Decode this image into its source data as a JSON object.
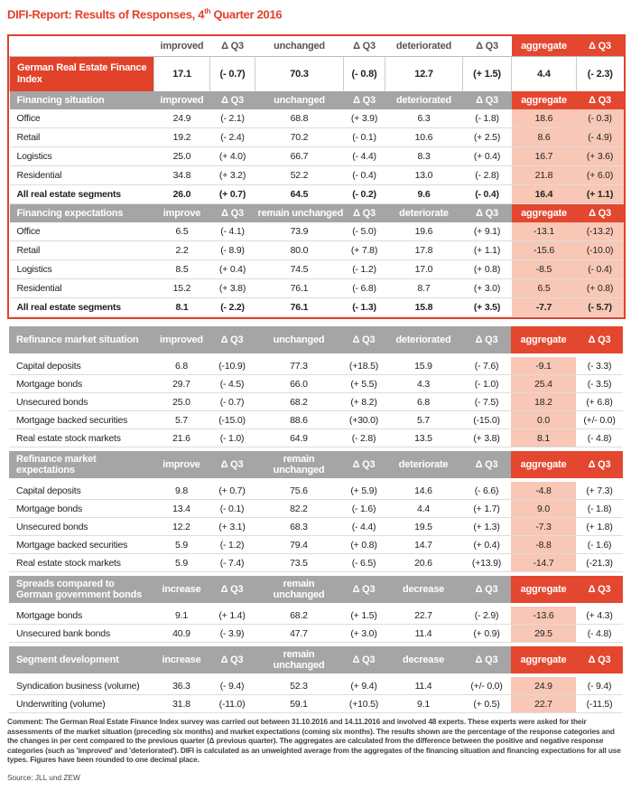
{
  "title": {
    "main": "DIFI-Report: Results of Responses, 4",
    "sup": "th",
    "rest": "Quarter 2016"
  },
  "tables": [
    {
      "headers": [
        "improved",
        "Δ Q3",
        "unchanged",
        "Δ Q3",
        "deteriorated",
        "Δ Q3",
        "aggregate",
        "Δ Q3"
      ],
      "index": {
        "label": "German Real Estate Finance Index",
        "cells": [
          "17.1",
          "(- 0.7)",
          "70.3",
          "(- 0.8)",
          "12.7",
          "(+ 1.5)",
          "4.4",
          "(- 2.3)"
        ]
      },
      "sections": [
        {
          "title": "Financing situation",
          "headers": [
            "improved",
            "Δ Q3",
            "unchanged",
            "Δ Q3",
            "deteriorated",
            "Δ Q3",
            "aggregate",
            "Δ Q3"
          ],
          "rows": [
            {
              "label": "Office",
              "cells": [
                "24.9",
                "(- 2.1)",
                "68.8",
                "(+ 3.9)",
                "6.3",
                "(- 1.8)",
                "18.6",
                "(- 0.3)"
              ]
            },
            {
              "label": "Retail",
              "cells": [
                "19.2",
                "(- 2.4)",
                "70.2",
                "(- 0.1)",
                "10.6",
                "(+ 2.5)",
                "8.6",
                "(- 4.9)"
              ]
            },
            {
              "label": "Logistics",
              "cells": [
                "25.0",
                "(+ 4.0)",
                "66.7",
                "(- 4.4)",
                "8.3",
                "(+ 0.4)",
                "16.7",
                "(+ 3.6)"
              ]
            },
            {
              "label": "Residential",
              "cells": [
                "34.8",
                "(+ 3.2)",
                "52.2",
                "(- 0.4)",
                "13.0",
                "(- 2.8)",
                "21.8",
                "(+ 6.0)"
              ]
            }
          ],
          "total": {
            "label": "All real estate segments",
            "cells": [
              "26.0",
              "(+ 0.7)",
              "64.5",
              "(- 0.2)",
              "9.6",
              "(- 0.4)",
              "16.4",
              "(+ 1.1)"
            ]
          }
        },
        {
          "title": "Financing expectations",
          "headers": [
            "improve",
            "Δ Q3",
            "remain unchanged",
            "Δ Q3",
            "deteriorate",
            "Δ Q3",
            "aggregate",
            "Δ Q3"
          ],
          "rows": [
            {
              "label": "Office",
              "cells": [
                "6.5",
                "(- 4.1)",
                "73.9",
                "(- 5.0)",
                "19.6",
                "(+ 9.1)",
                "-13.1",
                "(-13.2)"
              ]
            },
            {
              "label": "Retail",
              "cells": [
                "2.2",
                "(- 8.9)",
                "80.0",
                "(+ 7.8)",
                "17.8",
                "(+ 1.1)",
                "-15.6",
                "(-10.0)"
              ]
            },
            {
              "label": "Logistics",
              "cells": [
                "8.5",
                "(+ 0.4)",
                "74.5",
                "(- 1.2)",
                "17.0",
                "(+ 0.8)",
                "-8.5",
                "(- 0.4)"
              ]
            },
            {
              "label": "Residential",
              "cells": [
                "15.2",
                "(+ 3.8)",
                "76.1",
                "(- 6.8)",
                "8.7",
                "(+ 3.0)",
                "6.5",
                "(+ 0.8)"
              ]
            }
          ],
          "total": {
            "label": "All real estate segments",
            "cells": [
              "8.1",
              "(- 2.2)",
              "76.1",
              "(- 1.3)",
              "15.8",
              "(+ 3.5)",
              "-7.7",
              "(- 5.7)"
            ]
          }
        }
      ]
    },
    {
      "sections": [
        {
          "title": "Refinance market situation",
          "headers": [
            "improved",
            "Δ Q3",
            "unchanged",
            "Δ Q3",
            "deteriorated",
            "Δ Q3",
            "aggregate",
            "Δ Q3"
          ],
          "rows": [
            {
              "label": "Capital deposits",
              "cells": [
                "6.8",
                "(-10.9)",
                "77.3",
                "(+18.5)",
                "15.9",
                "(- 7.6)",
                "-9.1",
                "(- 3.3)"
              ]
            },
            {
              "label": "Mortgage bonds",
              "cells": [
                "29.7",
                "(- 4.5)",
                "66.0",
                "(+ 5.5)",
                "4.3",
                "(- 1.0)",
                "25.4",
                "(- 3.5)"
              ]
            },
            {
              "label": "Unsecured bonds",
              "cells": [
                "25.0",
                "(- 0.7)",
                "68.2",
                "(+ 8.2)",
                "6.8",
                "(- 7.5)",
                "18.2",
                "(+ 6.8)"
              ]
            },
            {
              "label": "Mortgage backed securities",
              "cells": [
                "5.7",
                "(-15.0)",
                "88.6",
                "(+30.0)",
                "5.7",
                "(-15.0)",
                "0.0",
                "(+/- 0.0)"
              ]
            },
            {
              "label": "Real estate stock markets",
              "cells": [
                "21.6",
                "(- 1.0)",
                "64.9",
                "(- 2.8)",
                "13.5",
                "(+ 3.8)",
                "8.1",
                "(- 4.8)"
              ]
            }
          ]
        },
        {
          "title": "Refinance market expectations",
          "headers": [
            "improve",
            "Δ Q3",
            "remain unchanged",
            "Δ Q3",
            "deteriorate",
            "Δ Q3",
            "aggregate",
            "Δ Q3"
          ],
          "rows": [
            {
              "label": "Capital deposits",
              "cells": [
                "9.8",
                "(+ 0.7)",
                "75.6",
                "(+ 5.9)",
                "14.6",
                "(- 6.6)",
                "-4.8",
                "(+ 7.3)"
              ]
            },
            {
              "label": "Mortgage bonds",
              "cells": [
                "13.4",
                "(- 0.1)",
                "82.2",
                "(- 1.6)",
                "4.4",
                "(+ 1.7)",
                "9.0",
                "(- 1.8)"
              ]
            },
            {
              "label": "Unsecured bonds",
              "cells": [
                "12.2",
                "(+ 3.1)",
                "68.3",
                "(- 4.4)",
                "19.5",
                "(+ 1.3)",
                "-7.3",
                "(+ 1.8)"
              ]
            },
            {
              "label": "Mortgage backed securities",
              "cells": [
                "5.9",
                "(- 1.2)",
                "79.4",
                "(+ 0.8)",
                "14.7",
                "(+ 0.4)",
                "-8.8",
                "(- 1.6)"
              ]
            },
            {
              "label": "Real estate stock markets",
              "cells": [
                "5.9",
                "(- 7.4)",
                "73.5",
                "(- 6.5)",
                "20.6",
                "(+13.9)",
                "-14.7",
                "(-21.3)"
              ]
            }
          ]
        },
        {
          "title": "Spreads compared to German government bonds",
          "headers": [
            "increase",
            "Δ Q3",
            "remain unchanged",
            "Δ Q3",
            "decrease",
            "Δ Q3",
            "aggregate",
            "Δ Q3"
          ],
          "rows": [
            {
              "label": "Mortgage bonds",
              "cells": [
                "9.1",
                "(+ 1.4)",
                "68.2",
                "(+ 1.5)",
                "22.7",
                "(- 2.9)",
                "-13.6",
                "(+ 4.3)"
              ]
            },
            {
              "label": "Unsecured bank bonds",
              "cells": [
                "40.9",
                "(- 3.9)",
                "47.7",
                "(+ 3.0)",
                "11.4",
                "(+ 0.9)",
                "29.5",
                "(- 4.8)"
              ]
            }
          ]
        },
        {
          "title": "Segment development",
          "headers": [
            "increase",
            "Δ Q3",
            "remain unchanged",
            "Δ Q3",
            "decrease",
            "Δ Q3",
            "aggregate",
            "Δ Q3"
          ],
          "rows": [
            {
              "label": "Syndication business (volume)",
              "cells": [
                "36.3",
                "(- 9.4)",
                "52.3",
                "(+ 9.4)",
                "11.4",
                "(+/- 0.0)",
                "24.9",
                "(- 9.4)"
              ]
            },
            {
              "label": "Underwriting (volume)",
              "cells": [
                "31.8",
                "(-11.0)",
                "59.1",
                "(+10.5)",
                "9.1",
                "(+ 0.5)",
                "22.7",
                "(-11.5)"
              ]
            }
          ]
        }
      ]
    }
  ],
  "comment": "Comment: The German Real Estate Finance Index survey was carried out between 31.10.2016 and 14.11.2016 and involved 48 experts. These experts were asked for their assessments of the market situation (preceding six months) and market expectations (coming six months). The results shown are the percentage of the response categories and the changes in per cent compared to the previous quarter (Δ previous quarter). The aggregates are calculated from the difference between the positive and negative response categories (such as 'improved' and 'deteriorated'). DIFI is calculated as an unweighted average from the aggregates of the financing situation and financing expectations for all use types. Figures have been rounded to one decimal place.",
  "source": "Source: JLL und ZEW"
}
